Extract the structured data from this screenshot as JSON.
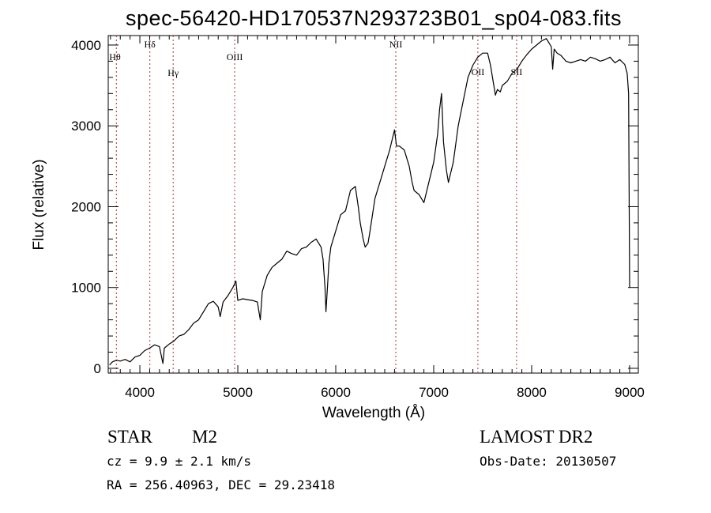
{
  "chart_data": {
    "type": "line",
    "title": "spec-56420-HD170537N293723B01_sp04-083.fits",
    "xlabel": "Wavelength (Å)",
    "ylabel": "Flux (relative)",
    "xlim": [
      3677,
      9089
    ],
    "ylim": [
      -59,
      4117
    ],
    "xticks": [
      4000,
      5000,
      6000,
      7000,
      8000,
      9000
    ],
    "xtick_labels": [
      "4000",
      "5000",
      "6000",
      "7000",
      "8000",
      "9000"
    ],
    "yticks": [
      0,
      1000,
      2000,
      3000,
      4000
    ],
    "ytick_labels": [
      "0",
      "1000",
      "2000",
      "3000",
      "4000"
    ],
    "grid": false,
    "lines": [
      {
        "label": "Hθ",
        "x": 3760
      },
      {
        "label": "Hδ",
        "x": 4102
      },
      {
        "label": "Hγ",
        "x": 4340
      },
      {
        "label": "OIII",
        "x": 4968
      },
      {
        "label": "NII",
        "x": 6613
      },
      {
        "label": "OII",
        "x": 7451
      },
      {
        "label": "SII",
        "x": 7846
      }
    ],
    "line_color": "#b03030",
    "series": [
      {
        "name": "spectrum",
        "x": [
          3690,
          3720,
          3760,
          3800,
          3850,
          3900,
          3950,
          4000,
          4050,
          4100,
          4150,
          4200,
          4220,
          4235,
          4250,
          4300,
          4350,
          4400,
          4450,
          4500,
          4550,
          4600,
          4650,
          4700,
          4750,
          4800,
          4820,
          4850,
          4900,
          4950,
          4980,
          5000,
          5050,
          5100,
          5150,
          5200,
          5230,
          5250,
          5300,
          5350,
          5400,
          5450,
          5500,
          5550,
          5600,
          5650,
          5700,
          5750,
          5800,
          5850,
          5870,
          5890,
          5900,
          5915,
          5930,
          5950,
          6000,
          6050,
          6100,
          6150,
          6200,
          6230,
          6250,
          6280,
          6300,
          6330,
          6350,
          6400,
          6450,
          6500,
          6550,
          6580,
          6600,
          6620,
          6650,
          6700,
          6750,
          6780,
          6800,
          6850,
          6900,
          6950,
          7000,
          7040,
          7060,
          7080,
          7100,
          7130,
          7150,
          7180,
          7200,
          7250,
          7300,
          7350,
          7400,
          7450,
          7500,
          7550,
          7580,
          7600,
          7630,
          7650,
          7680,
          7700,
          7750,
          7800,
          7850,
          7900,
          7950,
          8000,
          8050,
          8100,
          8150,
          8180,
          8200,
          8215,
          8230,
          8260,
          8300,
          8350,
          8400,
          8450,
          8500,
          8550,
          8600,
          8650,
          8700,
          8750,
          8800,
          8850,
          8900,
          8950,
          8975,
          8990,
          9000
        ],
        "y": [
          40,
          80,
          100,
          90,
          110,
          80,
          140,
          160,
          220,
          250,
          290,
          270,
          150,
          60,
          250,
          300,
          340,
          400,
          420,
          480,
          560,
          600,
          700,
          800,
          830,
          760,
          640,
          820,
          900,
          1000,
          1080,
          840,
          860,
          850,
          840,
          820,
          600,
          950,
          1150,
          1250,
          1300,
          1350,
          1450,
          1420,
          1400,
          1480,
          1500,
          1560,
          1600,
          1500,
          1350,
          1000,
          700,
          1000,
          1300,
          1500,
          1700,
          1900,
          1950,
          2200,
          2250,
          2000,
          1800,
          1600,
          1500,
          1550,
          1700,
          2100,
          2300,
          2500,
          2700,
          2850,
          2950,
          2750,
          2750,
          2700,
          2500,
          2300,
          2200,
          2150,
          2050,
          2300,
          2550,
          2900,
          3200,
          3400,
          2800,
          2450,
          2300,
          2450,
          2550,
          3000,
          3300,
          3600,
          3750,
          3850,
          3900,
          3900,
          3750,
          3600,
          3380,
          3450,
          3420,
          3500,
          3550,
          3650,
          3700,
          3800,
          3880,
          3950,
          4000,
          4050,
          4080,
          4020,
          3980,
          3700,
          3950,
          3900,
          3870,
          3800,
          3780,
          3800,
          3820,
          3800,
          3850,
          3830,
          3800,
          3820,
          3850,
          3780,
          3820,
          3760,
          3650,
          3400,
          1000
        ]
      }
    ]
  },
  "info": {
    "class_label": "STAR",
    "subclass": "M2",
    "survey": "LAMOST DR2",
    "cz": "cz = 9.9 ± 2.1 km/s",
    "obs_date": "Obs-Date: 20130507",
    "coords": "RA = 256.40963, DEC =  29.23418"
  }
}
